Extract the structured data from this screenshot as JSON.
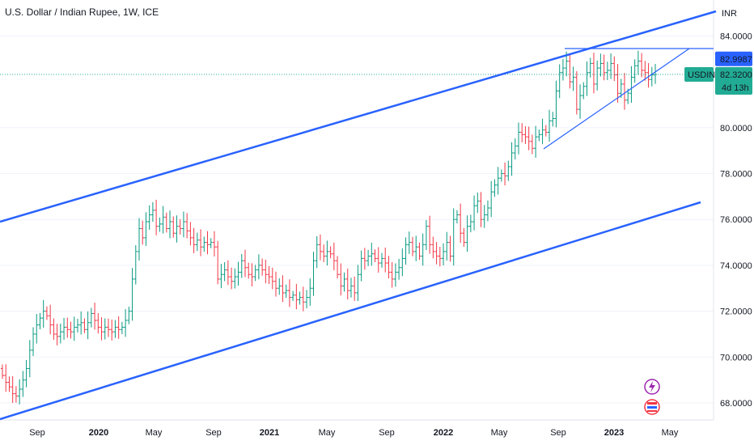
{
  "chart_data": {
    "type": "ohlc",
    "title": "U.S. Dollar / Indian Rupee, 1W, ICE",
    "symbol": "USDINR",
    "currency": "INR",
    "last_price": "82.3200",
    "price_level": "82.9987",
    "countdown": "4d 13h",
    "ylim": [
      67.0,
      85.0
    ],
    "y_ticks": [
      "84.0000",
      "80.0000",
      "78.0000",
      "76.0000",
      "74.0000",
      "72.0000",
      "70.0000",
      "68.0000"
    ],
    "x_ticks": [
      "Sep",
      "2020",
      "May",
      "Sep",
      "2021",
      "May",
      "Sep",
      "2022",
      "May",
      "Sep",
      "2023",
      "May"
    ],
    "closes": [
      69.2,
      68.9,
      68.7,
      68.4,
      68.3,
      68.6,
      69.0,
      69.5,
      70.3,
      71.0,
      71.4,
      71.7,
      72.0,
      71.8,
      71.4,
      71.0,
      70.9,
      71.1,
      71.3,
      71.2,
      71.1,
      71.3,
      71.4,
      71.5,
      71.2,
      71.5,
      71.9,
      71.6,
      71.3,
      71.1,
      71.3,
      71.2,
      71.1,
      71.3,
      71.2,
      71.3,
      71.6,
      72.0,
      73.4,
      74.6,
      75.6,
      75.2,
      75.9,
      76.2,
      76.4,
      75.7,
      75.8,
      76.1,
      75.6,
      75.9,
      75.4,
      75.7,
      75.6,
      75.9,
      75.5,
      75.2,
      74.9,
      75.1,
      74.8,
      75.0,
      74.9,
      75.0,
      74.8,
      73.4,
      73.6,
      73.8,
      73.5,
      73.3,
      73.5,
      73.7,
      74.2,
      73.9,
      73.6,
      73.5,
      73.8,
      74.0,
      73.8,
      73.6,
      73.5,
      73.3,
      73.0,
      73.1,
      72.8,
      72.9,
      72.6,
      72.7,
      72.5,
      72.6,
      72.4,
      72.6,
      73.0,
      74.2,
      74.9,
      74.6,
      74.4,
      74.6,
      74.5,
      74.2,
      73.6,
      73.1,
      73.4,
      72.9,
      73.1,
      72.8,
      73.6,
      74.3,
      74.2,
      74.4,
      74.5,
      74.3,
      74.1,
      74.3,
      74.1,
      73.7,
      73.4,
      73.7,
      73.9,
      74.3,
      74.9,
      75.0,
      74.6,
      74.8,
      74.4,
      74.9,
      75.7,
      74.9,
      74.6,
      74.4,
      74.3,
      74.6,
      75.0,
      74.4,
      76.0,
      76.2,
      75.4,
      75.0,
      75.7,
      75.9,
      76.6,
      76.8,
      76.0,
      76.2,
      76.5,
      77.2,
      77.5,
      77.8,
      78.0,
      77.9,
      78.3,
      78.9,
      79.2,
      79.8,
      79.7,
      79.6,
      79.4,
      79.1,
      79.6,
      79.7,
      79.9,
      79.8,
      80.3,
      80.4,
      81.6,
      82.4,
      82.6,
      82.9,
      82.0,
      82.2,
      80.8,
      81.4,
      81.8,
      82.4,
      82.8,
      81.9,
      82.6,
      82.8,
      82.4,
      82.5,
      82.8,
      82.3,
      81.5,
      81.9,
      81.2,
      81.5,
      82.2,
      82.7,
      82.9,
      82.5,
      82.4,
      82.1,
      82.3,
      82.32
    ]
  }
}
